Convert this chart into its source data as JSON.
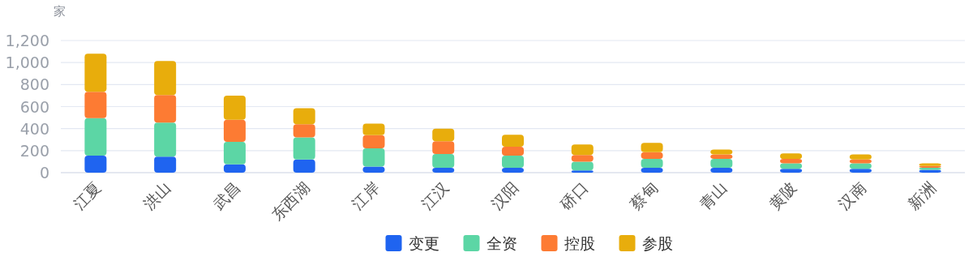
{
  "chart_data": {
    "type": "bar",
    "stacked": true,
    "ylabel": "家",
    "categories": [
      "江夏",
      "洪山",
      "武昌",
      "东西湖",
      "江岸",
      "江汉",
      "汉阳",
      "硚口",
      "蔡甸",
      "青山",
      "黄陂",
      "汉南",
      "新洲"
    ],
    "series": [
      {
        "name": "变更",
        "color": "#1f64f0",
        "values": [
          155,
          145,
          75,
          120,
          55,
          45,
          45,
          20,
          45,
          45,
          35,
          35,
          25
        ]
      },
      {
        "name": "全资",
        "color": "#5cd6a5",
        "values": [
          340,
          310,
          205,
          200,
          165,
          125,
          110,
          80,
          80,
          80,
          50,
          50,
          20
        ]
      },
      {
        "name": "控股",
        "color": "#fd7b33",
        "values": [
          240,
          250,
          200,
          120,
          120,
          115,
          80,
          60,
          60,
          40,
          40,
          35,
          15
        ]
      },
      {
        "name": "参股",
        "color": "#e8ad0c",
        "values": [
          345,
          310,
          220,
          145,
          105,
          115,
          110,
          95,
          85,
          45,
          50,
          45,
          25
        ]
      }
    ],
    "ylim": [
      0,
      1200
    ],
    "yticks": [
      {
        "value": 0,
        "label": "0"
      },
      {
        "value": 200,
        "label": "200"
      },
      {
        "value": 400,
        "label": "400"
      },
      {
        "value": 600,
        "label": "600"
      },
      {
        "value": 800,
        "label": "800"
      },
      {
        "value": 1000,
        "label": "1,000"
      },
      {
        "value": 1200,
        "label": "1,200"
      }
    ],
    "grid": "y",
    "legend": "bottom"
  }
}
